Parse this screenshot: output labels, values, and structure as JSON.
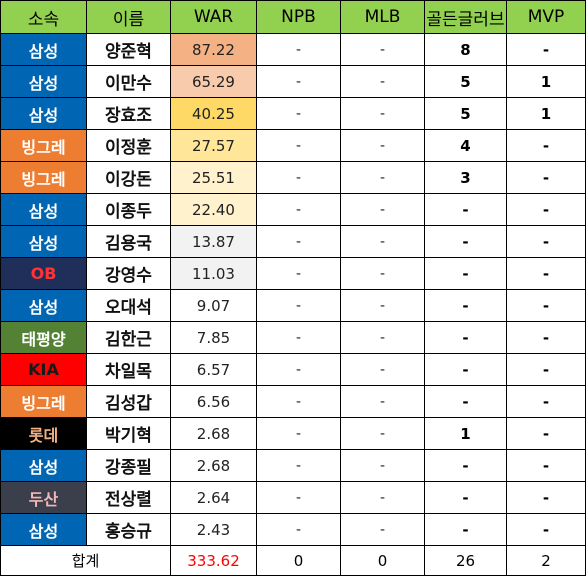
{
  "headers": [
    "소속",
    "이름",
    "WAR",
    "NPB",
    "MLB",
    "골든글러브",
    "MVP"
  ],
  "rows": [
    {
      "team": "삼성",
      "team_color": "#0066b3",
      "name": "양준혁",
      "war": "87.22",
      "war_bg": "#f4b183",
      "npb": "-",
      "mlb": "-",
      "gg": "8",
      "mvp": "-"
    },
    {
      "team": "삼성",
      "team_color": "#0066b3",
      "name": "이만수",
      "war": "65.29",
      "war_bg": "#f8cbad",
      "npb": "-",
      "mlb": "-",
      "gg": "5",
      "mvp": "1"
    },
    {
      "team": "삼성",
      "team_color": "#0066b3",
      "name": "장효조",
      "war": "40.25",
      "war_bg": "#ffd966",
      "npb": "-",
      "mlb": "-",
      "gg": "5",
      "mvp": "1"
    },
    {
      "team": "빙그레",
      "team_color": "#ed7d31",
      "name": "이정훈",
      "war": "27.57",
      "war_bg": "#ffe699",
      "npb": "-",
      "mlb": "-",
      "gg": "4",
      "mvp": "-"
    },
    {
      "team": "빙그레",
      "team_color": "#ed7d31",
      "name": "이강돈",
      "war": "25.51",
      "war_bg": "#fff2cc",
      "npb": "-",
      "mlb": "-",
      "gg": "3",
      "mvp": "-"
    },
    {
      "team": "삼성",
      "team_color": "#0066b3",
      "name": "이종두",
      "war": "22.40",
      "war_bg": "#fff2cc",
      "npb": "-",
      "mlb": "-",
      "gg": "-",
      "mvp": "-"
    },
    {
      "team": "삼성",
      "team_color": "#0066b3",
      "name": "김용국",
      "war": "13.87",
      "war_bg": "#f2f2f2",
      "npb": "-",
      "mlb": "-",
      "gg": "-",
      "mvp": "-"
    },
    {
      "team": "OB",
      "team_color": "#1f2f5a",
      "team_text": "#ff3333",
      "name": "강영수",
      "war": "11.03",
      "war_bg": "#f2f2f2",
      "npb": "-",
      "mlb": "-",
      "gg": "-",
      "mvp": "-"
    },
    {
      "team": "삼성",
      "team_color": "#0066b3",
      "name": "오대석",
      "war": "9.07",
      "war_bg": "#ffffff",
      "npb": "-",
      "mlb": "-",
      "gg": "-",
      "mvp": "-"
    },
    {
      "team": "태평양",
      "team_color": "#548235",
      "name": "김한근",
      "war": "7.85",
      "war_bg": "#ffffff",
      "npb": "-",
      "mlb": "-",
      "gg": "-",
      "mvp": "-"
    },
    {
      "team": "KIA",
      "team_color": "#ff0000",
      "team_text": "#1a1a1a",
      "name": "차일목",
      "war": "6.57",
      "war_bg": "#ffffff",
      "npb": "-",
      "mlb": "-",
      "gg": "-",
      "mvp": "-"
    },
    {
      "team": "빙그레",
      "team_color": "#ed7d31",
      "name": "김성갑",
      "war": "6.56",
      "war_bg": "#ffffff",
      "npb": "-",
      "mlb": "-",
      "gg": "-",
      "mvp": "-"
    },
    {
      "team": "롯데",
      "team_color": "#000000",
      "team_text": "#f4b183",
      "name": "박기혁",
      "war": "2.68",
      "war_bg": "#ffffff",
      "npb": "-",
      "mlb": "-",
      "gg": "1",
      "mvp": "-"
    },
    {
      "team": "삼성",
      "team_color": "#0066b3",
      "name": "강종필",
      "war": "2.68",
      "war_bg": "#ffffff",
      "npb": "-",
      "mlb": "-",
      "gg": "-",
      "mvp": "-"
    },
    {
      "team": "두산",
      "team_color": "#3a3f4b",
      "team_text": "#f4b6b6",
      "name": "전상렬",
      "war": "2.64",
      "war_bg": "#ffffff",
      "npb": "-",
      "mlb": "-",
      "gg": "-",
      "mvp": "-"
    },
    {
      "team": "삼성",
      "team_color": "#0066b3",
      "name": "홍승규",
      "war": "2.43",
      "war_bg": "#ffffff",
      "npb": "-",
      "mlb": "-",
      "gg": "-",
      "mvp": "-"
    }
  ],
  "total": {
    "label": "합계",
    "war": "333.62",
    "npb": "0",
    "mlb": "0",
    "gg": "26",
    "mvp": "2"
  }
}
